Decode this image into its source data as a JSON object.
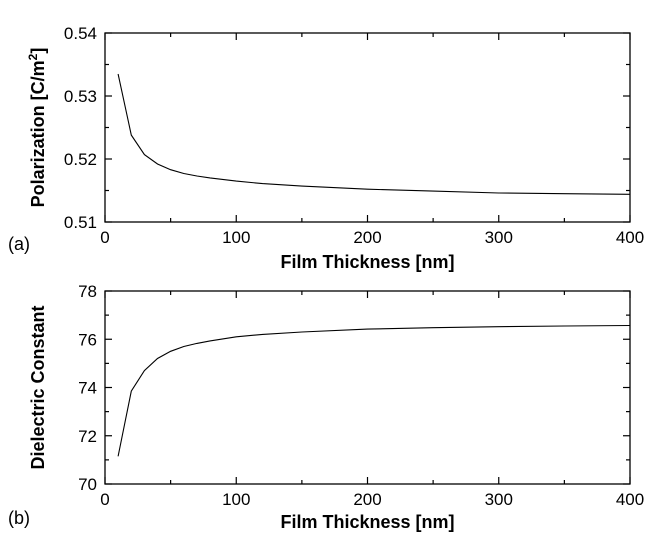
{
  "chart_data": [
    {
      "type": "line",
      "panel_label": "(a)",
      "title": "",
      "xlabel": "Film Thickness [nm]",
      "ylabel": "Polarization [C/m",
      "ylabel_sup": "2",
      "ylabel_end": "]",
      "xlim": [
        0,
        400
      ],
      "ylim": [
        0.51,
        0.54
      ],
      "xticks": [
        0,
        100,
        200,
        300,
        400
      ],
      "xtick_labels": [
        "0",
        "100",
        "200",
        "300",
        "400"
      ],
      "yticks": [
        0.51,
        0.52,
        0.53,
        0.54
      ],
      "ytick_labels": [
        "0.51",
        "0.52",
        "0.53",
        "0.54"
      ],
      "grid": false,
      "series": [
        {
          "x": [
            10,
            20,
            30,
            40,
            50,
            60,
            70,
            80,
            100,
            120,
            150,
            200,
            250,
            300,
            350,
            400
          ],
          "y": [
            0.5335,
            0.5238,
            0.5207,
            0.5192,
            0.5183,
            0.5177,
            0.5173,
            0.517,
            0.5165,
            0.5161,
            0.5157,
            0.5152,
            0.5149,
            0.5146,
            0.5145,
            0.5144
          ]
        }
      ]
    },
    {
      "type": "line",
      "panel_label": "(b)",
      "title": "",
      "xlabel": "Film Thickness [nm]",
      "ylabel": "Dielectric Constant",
      "xlim": [
        0,
        400
      ],
      "ylim": [
        70,
        78
      ],
      "xticks": [
        0,
        100,
        200,
        300,
        400
      ],
      "xtick_labels": [
        "0",
        "100",
        "200",
        "300",
        "400"
      ],
      "yticks": [
        70,
        72,
        74,
        76,
        78
      ],
      "ytick_labels": [
        "70",
        "72",
        "74",
        "76",
        "78"
      ],
      "grid": false,
      "series": [
        {
          "x": [
            10,
            20,
            30,
            40,
            50,
            60,
            70,
            80,
            100,
            120,
            150,
            200,
            250,
            300,
            350,
            400
          ],
          "y": [
            71.15,
            73.85,
            74.7,
            75.2,
            75.5,
            75.7,
            75.83,
            75.93,
            76.1,
            76.2,
            76.3,
            76.42,
            76.48,
            76.52,
            76.55,
            76.57
          ]
        }
      ]
    }
  ]
}
